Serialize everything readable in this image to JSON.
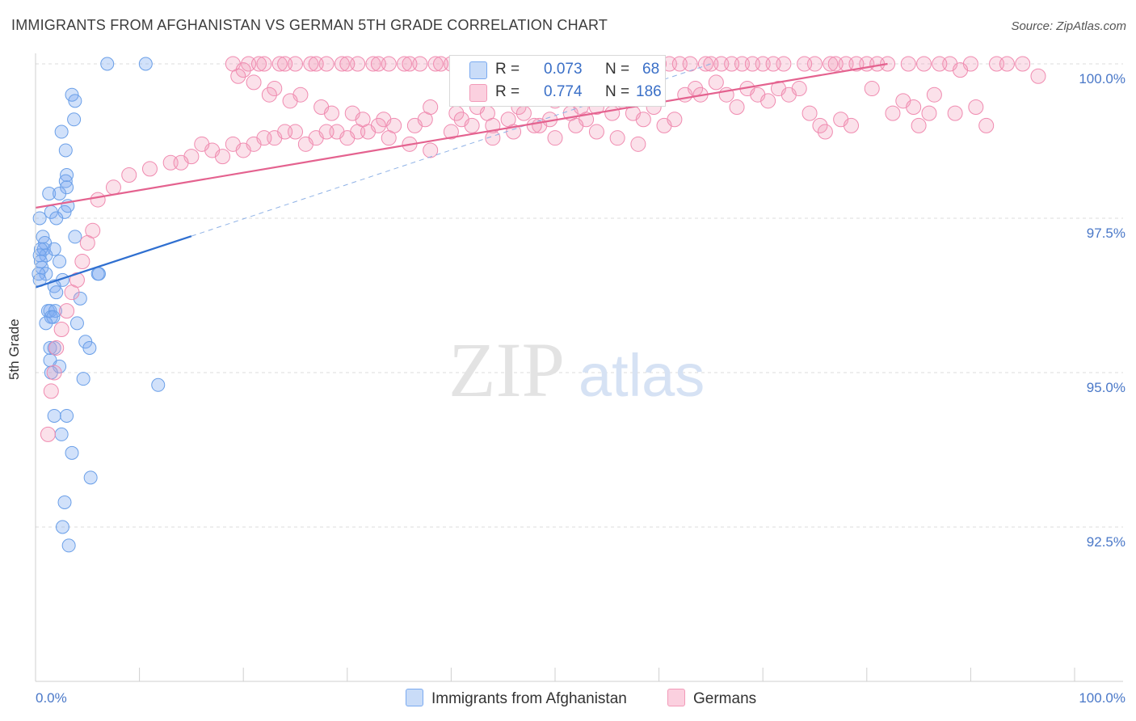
{
  "title": "IMMIGRANTS FROM AFGHANISTAN VS GERMAN 5TH GRADE CORRELATION CHART",
  "source": "Source: ZipAtlas.com",
  "watermark": {
    "zip": "ZIP",
    "atlas": "atlas"
  },
  "legend": {
    "r_label": "R =",
    "n_label": "N =",
    "series": [
      {
        "name": "Immigrants from Afghanistan",
        "r": "0.073",
        "n": "68",
        "color": "#7aaaf0"
      },
      {
        "name": "Germans",
        "r": "0.774",
        "n": "186",
        "color": "#f29ab8"
      }
    ]
  },
  "chart_data": {
    "type": "scatter",
    "xlabel": "",
    "ylabel": "5th Grade",
    "xlim": [
      0,
      100
    ],
    "ylim": [
      90.0,
      100.0
    ],
    "x_tick_labels": {
      "left": "0.0%",
      "right": "100.0%"
    },
    "y_ticks": [
      {
        "value": 100.0,
        "label": "100.0%"
      },
      {
        "value": 97.5,
        "label": "97.5%"
      },
      {
        "value": 95.0,
        "label": "95.0%"
      },
      {
        "value": 92.5,
        "label": "92.5%"
      }
    ],
    "grid": true,
    "series": [
      {
        "name": "Immigrants from Afghanistan",
        "color": "#6a9fe8",
        "trend": {
          "x": [
            0,
            15
          ],
          "y": [
            96.38,
            97.21
          ],
          "dashed_to": [
            65,
            100.0
          ]
        },
        "points": [
          [
            6.9,
            100.0
          ],
          [
            10.6,
            100.0
          ],
          [
            3.5,
            99.5
          ],
          [
            3.8,
            99.4
          ],
          [
            3.7,
            99.1
          ],
          [
            2.5,
            98.9
          ],
          [
            2.9,
            98.6
          ],
          [
            3.0,
            98.2
          ],
          [
            2.9,
            98.1
          ],
          [
            3.0,
            98.0
          ],
          [
            1.3,
            97.9
          ],
          [
            2.3,
            97.9
          ],
          [
            3.1,
            97.7
          ],
          [
            2.8,
            97.6
          ],
          [
            1.5,
            97.6
          ],
          [
            2.0,
            97.5
          ],
          [
            0.4,
            97.5
          ],
          [
            3.8,
            97.2
          ],
          [
            0.7,
            97.2
          ],
          [
            0.9,
            97.1
          ],
          [
            0.8,
            97.0
          ],
          [
            0.5,
            97.0
          ],
          [
            1.8,
            97.0
          ],
          [
            1.0,
            96.9
          ],
          [
            0.4,
            96.9
          ],
          [
            2.3,
            96.8
          ],
          [
            0.5,
            96.8
          ],
          [
            0.6,
            96.7
          ],
          [
            1.0,
            96.6
          ],
          [
            0.3,
            96.6
          ],
          [
            6.1,
            96.6
          ],
          [
            6.0,
            96.6
          ],
          [
            2.6,
            96.5
          ],
          [
            0.4,
            96.5
          ],
          [
            1.8,
            96.4
          ],
          [
            2.0,
            96.3
          ],
          [
            4.3,
            96.2
          ],
          [
            1.2,
            96.0
          ],
          [
            1.4,
            96.0
          ],
          [
            1.9,
            96.0
          ],
          [
            1.5,
            95.9
          ],
          [
            1.7,
            95.9
          ],
          [
            4.0,
            95.8
          ],
          [
            1.0,
            95.8
          ],
          [
            4.8,
            95.5
          ],
          [
            5.2,
            95.4
          ],
          [
            1.4,
            95.4
          ],
          [
            1.8,
            95.4
          ],
          [
            1.4,
            95.2
          ],
          [
            2.3,
            95.1
          ],
          [
            1.5,
            95.0
          ],
          [
            4.6,
            94.9
          ],
          [
            11.8,
            94.8
          ],
          [
            1.8,
            94.3
          ],
          [
            3.0,
            94.3
          ],
          [
            2.5,
            94.0
          ],
          [
            3.5,
            93.7
          ],
          [
            5.3,
            93.3
          ],
          [
            2.8,
            92.9
          ],
          [
            2.6,
            92.5
          ],
          [
            3.2,
            92.2
          ]
        ]
      },
      {
        "name": "Germans",
        "color": "#f08bb0",
        "trend": {
          "x": [
            0,
            82
          ],
          "y": [
            97.67,
            100.0
          ]
        },
        "points": [
          [
            96.5,
            99.8
          ],
          [
            92.5,
            100.0
          ],
          [
            90.0,
            100.0
          ],
          [
            88.0,
            100.0
          ],
          [
            85.5,
            100.0
          ],
          [
            84.0,
            100.0
          ],
          [
            82.0,
            100.0
          ],
          [
            80.0,
            100.0
          ],
          [
            78.0,
            100.0
          ],
          [
            76.5,
            100.0
          ],
          [
            75.0,
            100.0
          ],
          [
            72.0,
            100.0
          ],
          [
            70.0,
            100.0
          ],
          [
            68.0,
            100.0
          ],
          [
            66.0,
            100.0
          ],
          [
            64.5,
            100.0
          ],
          [
            63.0,
            100.0
          ],
          [
            61.0,
            100.0
          ],
          [
            60.0,
            100.0
          ],
          [
            58.0,
            100.0
          ],
          [
            56.0,
            100.0
          ],
          [
            55.0,
            100.0
          ],
          [
            53.5,
            100.0
          ],
          [
            52.0,
            100.0
          ],
          [
            50.5,
            100.0
          ],
          [
            49.0,
            100.0
          ],
          [
            47.5,
            100.0
          ],
          [
            46.0,
            100.0
          ],
          [
            44.5,
            100.0
          ],
          [
            43.0,
            100.0
          ],
          [
            41.5,
            100.0
          ],
          [
            40.0,
            100.0
          ],
          [
            38.5,
            100.0
          ],
          [
            37.0,
            100.0
          ],
          [
            35.5,
            100.0
          ],
          [
            34.0,
            100.0
          ],
          [
            32.5,
            100.0
          ],
          [
            31.0,
            100.0
          ],
          [
            29.5,
            100.0
          ],
          [
            28.0,
            100.0
          ],
          [
            26.5,
            100.0
          ],
          [
            25.0,
            100.0
          ],
          [
            23.5,
            100.0
          ],
          [
            22.0,
            100.0
          ],
          [
            20.5,
            100.0
          ],
          [
            19.0,
            100.0
          ],
          [
            89.0,
            99.9
          ],
          [
            95.0,
            100.0
          ],
          [
            93.5,
            100.0
          ],
          [
            87.0,
            100.0
          ],
          [
            81.0,
            100.0
          ],
          [
            79.0,
            100.0
          ],
          [
            77.0,
            100.0
          ],
          [
            74.0,
            100.0
          ],
          [
            71.0,
            100.0
          ],
          [
            69.0,
            100.0
          ],
          [
            67.0,
            100.0
          ],
          [
            65.0,
            100.0
          ],
          [
            62.0,
            100.0
          ],
          [
            59.0,
            100.0
          ],
          [
            57.0,
            100.0
          ],
          [
            54.5,
            100.0
          ],
          [
            51.0,
            100.0
          ],
          [
            48.0,
            100.0
          ],
          [
            45.0,
            100.0
          ],
          [
            42.0,
            100.0
          ],
          [
            39.0,
            100.0
          ],
          [
            36.0,
            100.0
          ],
          [
            33.0,
            100.0
          ],
          [
            30.0,
            100.0
          ],
          [
            27.0,
            100.0
          ],
          [
            24.0,
            100.0
          ],
          [
            21.5,
            100.0
          ],
          [
            20.0,
            99.9
          ],
          [
            19.5,
            99.8
          ],
          [
            21.0,
            99.7
          ],
          [
            23.0,
            99.6
          ],
          [
            22.5,
            99.5
          ],
          [
            25.5,
            99.5
          ],
          [
            24.5,
            99.4
          ],
          [
            27.5,
            99.3
          ],
          [
            28.5,
            99.2
          ],
          [
            30.5,
            99.2
          ],
          [
            31.5,
            99.1
          ],
          [
            33.5,
            99.1
          ],
          [
            34.5,
            99.0
          ],
          [
            36.5,
            99.0
          ],
          [
            37.5,
            99.1
          ],
          [
            38.0,
            99.3
          ],
          [
            40.5,
            99.2
          ],
          [
            41.0,
            99.1
          ],
          [
            42.5,
            99.3
          ],
          [
            43.5,
            99.2
          ],
          [
            44.0,
            99.0
          ],
          [
            45.5,
            99.1
          ],
          [
            46.5,
            99.3
          ],
          [
            47.0,
            99.2
          ],
          [
            48.5,
            99.0
          ],
          [
            49.5,
            99.1
          ],
          [
            50.0,
            99.4
          ],
          [
            51.5,
            99.2
          ],
          [
            52.5,
            99.3
          ],
          [
            53.0,
            99.1
          ],
          [
            54.0,
            99.3
          ],
          [
            55.5,
            99.2
          ],
          [
            56.5,
            99.4
          ],
          [
            57.5,
            99.2
          ],
          [
            58.5,
            99.1
          ],
          [
            59.5,
            99.3
          ],
          [
            60.5,
            99.0
          ],
          [
            61.5,
            99.1
          ],
          [
            62.5,
            99.5
          ],
          [
            63.5,
            99.6
          ],
          [
            64.0,
            99.5
          ],
          [
            65.5,
            99.7
          ],
          [
            66.5,
            99.5
          ],
          [
            67.5,
            99.3
          ],
          [
            68.5,
            99.6
          ],
          [
            69.5,
            99.5
          ],
          [
            70.5,
            99.4
          ],
          [
            71.5,
            99.6
          ],
          [
            72.5,
            99.5
          ],
          [
            73.5,
            99.6
          ],
          [
            74.5,
            99.2
          ],
          [
            75.5,
            99.0
          ],
          [
            76.0,
            98.9
          ],
          [
            77.5,
            99.1
          ],
          [
            78.5,
            99.0
          ],
          [
            80.5,
            99.6
          ],
          [
            82.5,
            99.2
          ],
          [
            83.5,
            99.4
          ],
          [
            84.5,
            99.3
          ],
          [
            85.0,
            99.0
          ],
          [
            86.0,
            99.2
          ],
          [
            86.5,
            99.5
          ],
          [
            88.5,
            99.2
          ],
          [
            90.5,
            99.3
          ],
          [
            91.5,
            99.0
          ],
          [
            33.0,
            99.0
          ],
          [
            31.0,
            98.9
          ],
          [
            29.0,
            98.9
          ],
          [
            27.0,
            98.8
          ],
          [
            25.0,
            98.9
          ],
          [
            23.0,
            98.8
          ],
          [
            21.0,
            98.7
          ],
          [
            19.0,
            98.7
          ],
          [
            17.0,
            98.6
          ],
          [
            15.0,
            98.5
          ],
          [
            13.0,
            98.4
          ],
          [
            11.0,
            98.3
          ],
          [
            9.0,
            98.2
          ],
          [
            7.5,
            98.0
          ],
          [
            6.0,
            97.8
          ],
          [
            5.5,
            97.3
          ],
          [
            5.0,
            97.1
          ],
          [
            4.5,
            96.8
          ],
          [
            4.0,
            96.5
          ],
          [
            3.5,
            96.3
          ],
          [
            3.0,
            96.0
          ],
          [
            2.5,
            95.7
          ],
          [
            2.0,
            95.4
          ],
          [
            1.8,
            95.0
          ],
          [
            1.5,
            94.7
          ],
          [
            1.2,
            94.0
          ],
          [
            14.0,
            98.4
          ],
          [
            16.0,
            98.7
          ],
          [
            18.0,
            98.5
          ],
          [
            20.0,
            98.6
          ],
          [
            22.0,
            98.8
          ],
          [
            24.0,
            98.9
          ],
          [
            26.0,
            98.7
          ],
          [
            28.0,
            98.9
          ],
          [
            30.0,
            98.8
          ],
          [
            32.0,
            98.9
          ],
          [
            34.0,
            98.8
          ],
          [
            36.0,
            98.7
          ],
          [
            38.0,
            98.6
          ],
          [
            40.0,
            98.9
          ],
          [
            42.0,
            99.0
          ],
          [
            44.0,
            98.8
          ],
          [
            46.0,
            98.9
          ],
          [
            48.0,
            99.0
          ],
          [
            50.0,
            98.8
          ],
          [
            52.0,
            99.0
          ],
          [
            54.0,
            98.9
          ],
          [
            56.0,
            98.8
          ],
          [
            58.0,
            98.7
          ]
        ]
      }
    ]
  }
}
